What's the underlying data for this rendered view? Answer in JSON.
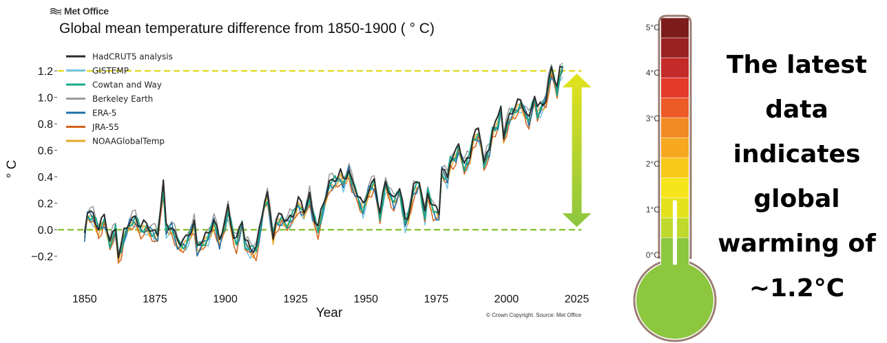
{
  "brand": "Met Office",
  "copyright": "© Crown Copyright. Source: Met Office",
  "headline": [
    "The latest",
    "data",
    "indicates",
    "global",
    "warming of",
    "~1.2°C"
  ],
  "thermometer": {
    "labels": [
      "5°C",
      "4°C",
      "3°C",
      "2°C",
      "1°C",
      "0°C"
    ],
    "segment_colors": [
      "#7b1b1b",
      "#9b2222",
      "#c42a2a",
      "#e33a2a",
      "#ec5a26",
      "#f28a22",
      "#f6a81e",
      "#f8c81a",
      "#f6e51a",
      "#e3e21c",
      "#bfd92c",
      "#8dc63f"
    ],
    "fill_level_c": 1.2
  },
  "chart_data": {
    "type": "line",
    "title": "Global mean temperature difference from 1850-1900 ( ° C)",
    "xlabel": "Year",
    "ylabel": "° C",
    "xlim": [
      1840,
      2030
    ],
    "ylim": [
      -0.3,
      1.32
    ],
    "xticks": [
      1850,
      1875,
      1900,
      1925,
      1950,
      1975,
      2000,
      2025
    ],
    "yticks": [
      -0.2,
      0.0,
      0.2,
      0.4,
      0.6,
      0.8,
      1.0,
      1.2
    ],
    "ytick_labels": [
      "−0.2",
      "0.0",
      "0.2",
      "0.4",
      "0.6",
      "0.8",
      "1.0",
      "1.2"
    ],
    "legend_position": "top-left",
    "reference_lines": [
      {
        "y": 1.2,
        "color": "#e1dc2b"
      },
      {
        "y": 0.0,
        "color": "#8cc63f"
      }
    ],
    "arrow": {
      "x": 2025,
      "y_from": 0.0,
      "y_to": 1.2,
      "color_top": "#e3e21c",
      "color_bottom": "#8cc63f"
    },
    "anchors": {
      "x": [
        1850,
        1851,
        1853,
        1855,
        1857,
        1859,
        1861,
        1862,
        1863,
        1864,
        1866,
        1868,
        1870,
        1872,
        1874,
        1876,
        1877,
        1878,
        1879,
        1881,
        1883,
        1884,
        1886,
        1887,
        1889,
        1890,
        1892,
        1894,
        1896,
        1898,
        1900,
        1901,
        1903,
        1904,
        1906,
        1907,
        1909,
        1911,
        1912,
        1914,
        1915,
        1917,
        1918,
        1920,
        1922,
        1924,
        1926,
        1928,
        1930,
        1931,
        1933,
        1935,
        1937,
        1938,
        1940,
        1941,
        1942,
        1944,
        1945,
        1947,
        1949,
        1951,
        1953,
        1955,
        1957,
        1958,
        1960,
        1962,
        1964,
        1965,
        1967,
        1969,
        1971,
        1972,
        1974,
        1976,
        1977,
        1979,
        1980,
        1982,
        1983,
        1985,
        1987,
        1988,
        1990,
        1991,
        1992,
        1994,
        1995,
        1997,
        1998,
        1999,
        2001,
        2002,
        2003,
        2005,
        2006,
        2008,
        2010,
        2011,
        2013,
        2014,
        2015,
        2016,
        2017,
        2018,
        2019,
        2020
      ],
      "y": [
        -0.05,
        0.12,
        0.1,
        0.0,
        0.07,
        -0.1,
        0.0,
        -0.2,
        -0.15,
        -0.05,
        0.05,
        0.08,
        0.0,
        0.02,
        -0.02,
        -0.05,
        0.15,
        0.32,
        0.0,
        0.02,
        -0.1,
        -0.12,
        -0.1,
        -0.05,
        0.05,
        -0.15,
        -0.1,
        -0.05,
        0.07,
        -0.1,
        0.05,
        0.15,
        -0.05,
        -0.1,
        0.05,
        -0.1,
        -0.15,
        -0.15,
        -0.05,
        0.2,
        0.25,
        -0.05,
        0.05,
        0.08,
        0.05,
        0.1,
        0.2,
        0.12,
        0.25,
        0.12,
        0.0,
        0.18,
        0.35,
        0.35,
        0.38,
        0.4,
        0.35,
        0.45,
        0.35,
        0.25,
        0.15,
        0.3,
        0.35,
        0.1,
        0.35,
        0.3,
        0.2,
        0.3,
        0.05,
        0.1,
        0.3,
        0.35,
        0.1,
        0.28,
        0.15,
        0.1,
        0.45,
        0.38,
        0.52,
        0.55,
        0.62,
        0.48,
        0.55,
        0.68,
        0.72,
        0.65,
        0.5,
        0.6,
        0.75,
        0.8,
        0.92,
        0.7,
        0.85,
        0.88,
        0.9,
        0.95,
        0.92,
        0.82,
        1.0,
        0.88,
        0.95,
        0.98,
        1.1,
        1.2,
        1.13,
        1.05,
        1.18,
        1.22
      ]
    },
    "series": [
      {
        "name": "HadCRUT5 analysis",
        "color": "#2b2b2b",
        "offset": 0.02,
        "width": 2.0
      },
      {
        "name": "GISTEMP",
        "color": "#74c4e8",
        "offset": -0.03,
        "width": 1.5
      },
      {
        "name": "Cowtan and Way",
        "color": "#1aa88a",
        "offset": 0.0,
        "width": 2.0
      },
      {
        "name": "Berkeley Earth",
        "color": "#9a9a9a",
        "offset": 0.04,
        "width": 1.5
      },
      {
        "name": "ERA-5",
        "color": "#1e6fa8",
        "offset": -0.01,
        "width": 1.5
      },
      {
        "name": "JRA-55",
        "color": "#d3611c",
        "offset": -0.04,
        "width": 1.5
      },
      {
        "name": "NOAAGlobalTemp",
        "color": "#e5a823",
        "offset": -0.02,
        "width": 1.5
      }
    ]
  }
}
